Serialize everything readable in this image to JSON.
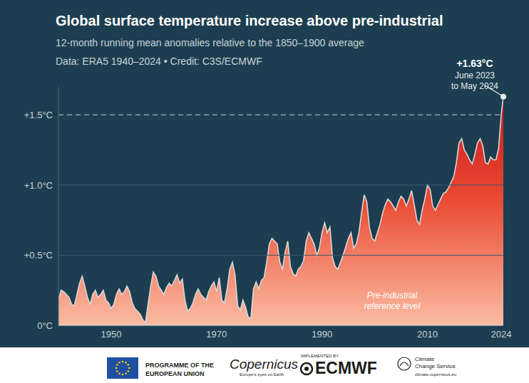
{
  "chart_data": {
    "type": "area",
    "title": "Global surface temperature increase above pre-industrial",
    "subtitle": "12-month running mean anomalies relative to the 1850–1900 average",
    "source": "Data: ERA5 1940–2024 • Credit: C3S/ECMWF",
    "x": [
      1940,
      1940.5,
      1941,
      1941.5,
      1942,
      1942.5,
      1943,
      1943.5,
      1944,
      1944.5,
      1945,
      1945.5,
      1946,
      1946.5,
      1947,
      1947.5,
      1948,
      1948.5,
      1949,
      1949.5,
      1950,
      1950.5,
      1951,
      1951.5,
      1952,
      1952.5,
      1953,
      1953.5,
      1954,
      1954.5,
      1955,
      1955.5,
      1956,
      1956.5,
      1957,
      1957.5,
      1958,
      1958.5,
      1959,
      1959.5,
      1960,
      1960.5,
      1961,
      1961.5,
      1962,
      1962.5,
      1963,
      1963.5,
      1964,
      1964.5,
      1965,
      1965.5,
      1966,
      1966.5,
      1967,
      1967.5,
      1968,
      1968.5,
      1969,
      1969.5,
      1970,
      1970.5,
      1971,
      1971.5,
      1972,
      1972.5,
      1973,
      1973.5,
      1974,
      1974.5,
      1975,
      1975.5,
      1976,
      1976.5,
      1977,
      1977.5,
      1978,
      1978.5,
      1979,
      1979.5,
      1980,
      1980.5,
      1981,
      1981.5,
      1982,
      1982.5,
      1983,
      1983.5,
      1984,
      1984.5,
      1985,
      1985.5,
      1986,
      1986.5,
      1987,
      1987.5,
      1988,
      1988.5,
      1989,
      1989.5,
      1990,
      1990.5,
      1991,
      1991.5,
      1992,
      1992.5,
      1993,
      1993.5,
      1994,
      1994.5,
      1995,
      1995.5,
      1996,
      1996.5,
      1997,
      1997.5,
      1998,
      1998.5,
      1999,
      1999.5,
      2000,
      2000.5,
      2001,
      2001.5,
      2002,
      2002.5,
      2003,
      2003.5,
      2004,
      2004.5,
      2005,
      2005.5,
      2006,
      2006.5,
      2007,
      2007.5,
      2008,
      2008.5,
      2009,
      2009.5,
      2010,
      2010.5,
      2011,
      2011.5,
      2012,
      2012.5,
      2013,
      2013.5,
      2014,
      2014.5,
      2015,
      2015.5,
      2016,
      2016.5,
      2017,
      2017.5,
      2018,
      2018.5,
      2019,
      2019.5,
      2020,
      2020.5,
      2021,
      2021.5,
      2022,
      2022.5,
      2023,
      2023.5,
      2024,
      2024.4
    ],
    "values": [
      0.18,
      0.25,
      0.24,
      0.22,
      0.2,
      0.15,
      0.14,
      0.22,
      0.3,
      0.35,
      0.28,
      0.2,
      0.15,
      0.22,
      0.25,
      0.2,
      0.22,
      0.25,
      0.18,
      0.16,
      0.12,
      0.15,
      0.22,
      0.26,
      0.22,
      0.24,
      0.28,
      0.24,
      0.16,
      0.12,
      0.1,
      0.08,
      0.04,
      0.02,
      0.15,
      0.28,
      0.38,
      0.35,
      0.28,
      0.25,
      0.22,
      0.27,
      0.3,
      0.28,
      0.32,
      0.36,
      0.3,
      0.33,
      0.18,
      0.1,
      0.12,
      0.16,
      0.22,
      0.26,
      0.22,
      0.2,
      0.18,
      0.24,
      0.28,
      0.31,
      0.24,
      0.34,
      0.18,
      0.16,
      0.26,
      0.4,
      0.45,
      0.36,
      0.14,
      0.11,
      0.18,
      0.13,
      0.06,
      0.05,
      0.26,
      0.31,
      0.26,
      0.32,
      0.34,
      0.45,
      0.58,
      0.62,
      0.6,
      0.58,
      0.45,
      0.4,
      0.52,
      0.6,
      0.42,
      0.37,
      0.35,
      0.4,
      0.42,
      0.46,
      0.6,
      0.66,
      0.62,
      0.58,
      0.5,
      0.55,
      0.66,
      0.73,
      0.66,
      0.7,
      0.48,
      0.42,
      0.4,
      0.45,
      0.5,
      0.56,
      0.62,
      0.66,
      0.55,
      0.58,
      0.66,
      0.8,
      0.93,
      0.88,
      0.7,
      0.62,
      0.6,
      0.66,
      0.72,
      0.8,
      0.86,
      0.9,
      0.88,
      0.85,
      0.82,
      0.88,
      0.92,
      0.9,
      0.85,
      0.9,
      0.96,
      0.86,
      0.75,
      0.72,
      0.82,
      0.9,
      1.0,
      0.97,
      0.85,
      0.82,
      0.86,
      0.9,
      0.94,
      0.95,
      0.98,
      1.02,
      1.06,
      1.16,
      1.3,
      1.33,
      1.25,
      1.22,
      1.18,
      1.15,
      1.22,
      1.3,
      1.33,
      1.28,
      1.16,
      1.15,
      1.2,
      1.18,
      1.18,
      1.26,
      1.5,
      1.63
    ],
    "color": "#c8161d",
    "xlim": [
      1940,
      2024.4
    ],
    "xticks": [
      1950,
      1970,
      1990,
      2010,
      2024
    ],
    "ylim": [
      0,
      1.7
    ],
    "yticks": [
      {
        "value": 0,
        "label": "0°C"
      },
      {
        "value": 0.5,
        "label": "+0.5°C"
      },
      {
        "value": 1.0,
        "label": "+1.0°C"
      },
      {
        "value": 1.5,
        "label": "+1.5°C"
      }
    ],
    "grid": true,
    "annotations": [
      {
        "label": "+1.63°C",
        "lines": [
          "June 2023",
          "to May 2024"
        ],
        "x": 2024.4,
        "y": 1.63
      },
      {
        "lines": [
          "Pre-industrial",
          "reference level"
        ]
      }
    ]
  },
  "footer": {
    "programme": [
      "PROGRAMME OF THE",
      "EUROPEAN UNION"
    ],
    "copernicus": "Copernicus",
    "copernicus_tagline": "Europe's eyes on Earth",
    "implemented_by": "IMPLEMENTED BY",
    "ecmwf": "ECMWF",
    "service": [
      "Climate",
      "Change Service"
    ],
    "url": "climate.copernicus.eu"
  }
}
